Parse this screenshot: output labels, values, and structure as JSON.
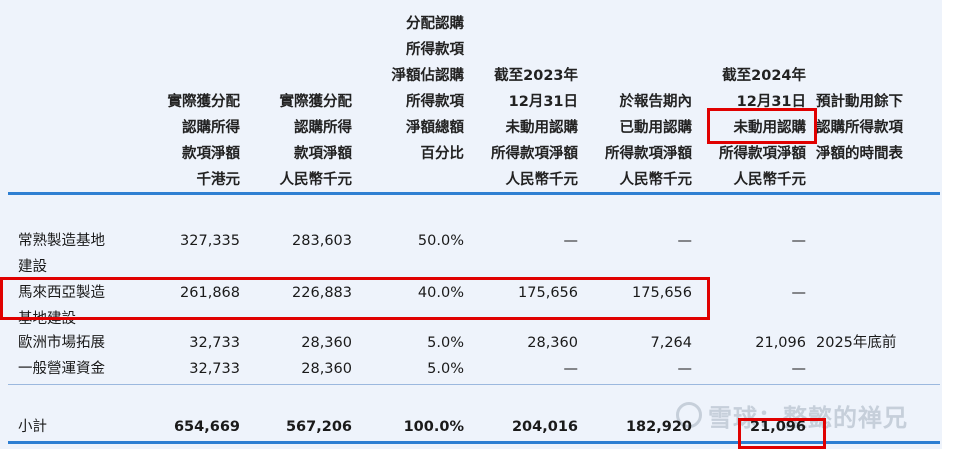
{
  "headers": {
    "c1": "實際獲分配\n認購所得\n款項淨額\n千港元",
    "c2": "實際獲分配\n認購所得\n款項淨額\n人民幣千元",
    "c3": "分配認購\n所得款項\n淨額佔認購\n所得款項\n淨額總額\n百分比",
    "c4": "截至2023年\n12月31日\n未動用認購\n所得款項淨額\n人民幣千元",
    "c5": "於報告期內\n已動用認購\n所得款項淨額\n人民幣千元",
    "c6": "截至2024年\n12月31日\n未動用認購\n所得款項淨額\n人民幣千元",
    "c7": "預計動用餘下\n認購所得款項\n淨額的時間表"
  },
  "rows": [
    {
      "label": "常熟製造基地\n建設",
      "v1": "327,335",
      "v2": "283,603",
      "v3": "50.0%",
      "v4": "—",
      "v5": "—",
      "v6": "—",
      "v7": ""
    },
    {
      "label": "馬來西亞製造\n基地建設",
      "v1": "261,868",
      "v2": "226,883",
      "v3": "40.0%",
      "v4": "175,656",
      "v5": "175,656",
      "v6": "—",
      "v7": ""
    },
    {
      "label": "歐洲市場拓展",
      "v1": "32,733",
      "v2": "28,360",
      "v3": "5.0%",
      "v4": "28,360",
      "v5": "7,264",
      "v6": "21,096",
      "v7": "2025年底前"
    },
    {
      "label": "一般營運資金",
      "v1": "32,733",
      "v2": "28,360",
      "v3": "5.0%",
      "v4": "—",
      "v5": "—",
      "v6": "—",
      "v7": ""
    }
  ],
  "subtotal": {
    "label": "小計",
    "v1": "654,669",
    "v2": "567,206",
    "v3": "100.0%",
    "v4": "204,016",
    "v5": "182,920",
    "v6": "21,096"
  },
  "watermark": "雪球：整懿的禅兄",
  "colors": {
    "rule": "#2e7fd2",
    "highlight": "#e00000",
    "panel": "#eef3fb"
  }
}
